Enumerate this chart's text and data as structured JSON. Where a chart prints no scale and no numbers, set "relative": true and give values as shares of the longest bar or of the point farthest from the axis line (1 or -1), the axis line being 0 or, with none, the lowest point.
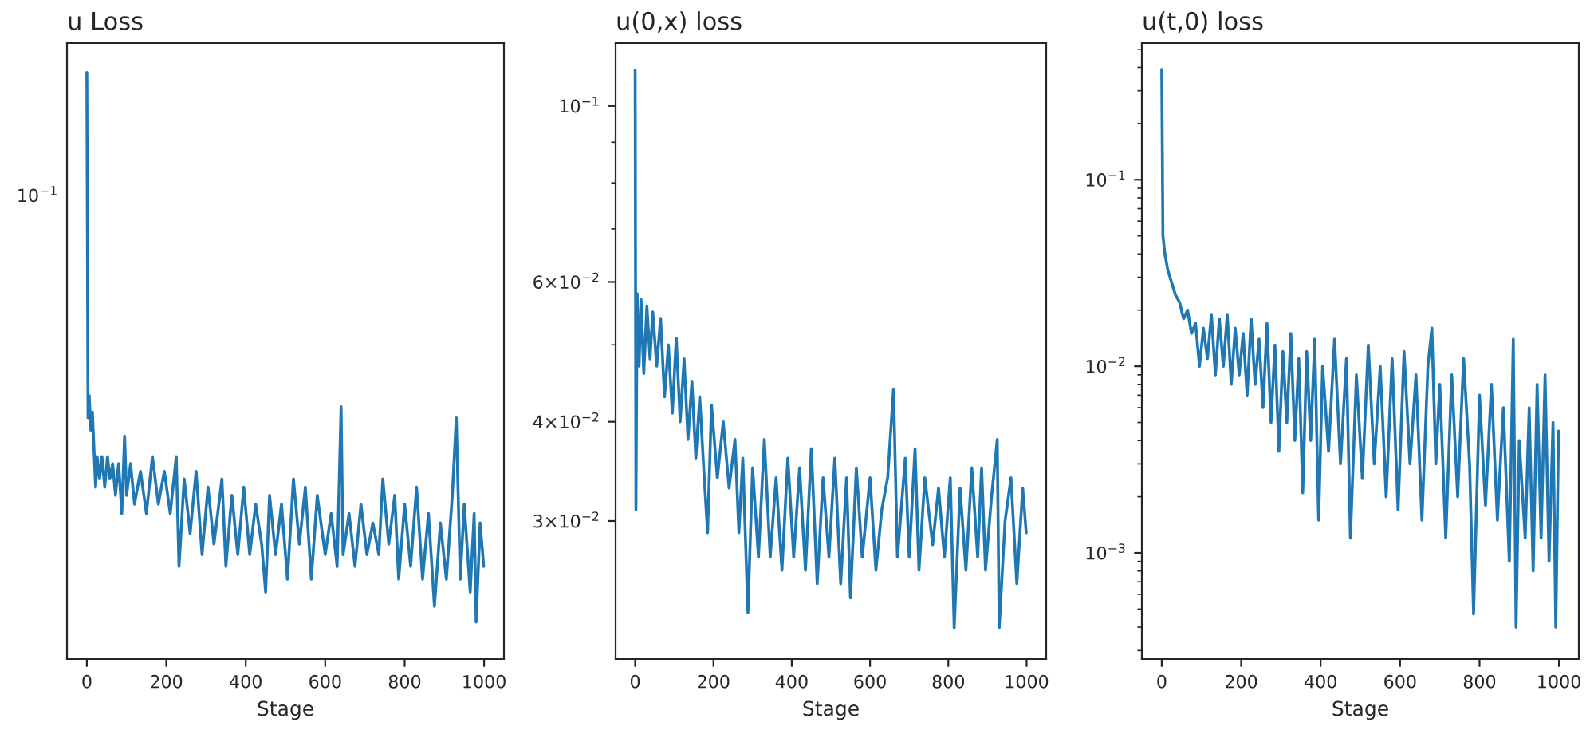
{
  "chart_data": [
    {
      "type": "line",
      "title": "u Loss",
      "xlabel": "Stage",
      "relative": true,
      "annotations": [
        "10$^{−1}$"
      ],
      "grid": false,
      "xlim": [
        -50,
        1050
      ],
      "xticks": [
        0,
        200,
        400,
        600,
        800,
        1000
      ],
      "series": [
        {
          "color": "#1f77b4",
          "x": [
            0,
            3,
            6,
            10,
            14,
            18,
            22,
            26,
            32,
            38,
            45,
            52,
            58,
            65,
            72,
            80,
            88,
            95,
            100,
            110,
            120,
            135,
            150,
            165,
            180,
            195,
            210,
            225,
            232,
            245,
            260,
            275,
            290,
            305,
            320,
            340,
            350,
            365,
            380,
            395,
            410,
            425,
            440,
            450,
            460,
            475,
            490,
            505,
            520,
            535,
            550,
            565,
            580,
            600,
            615,
            630,
            640,
            645,
            660,
            675,
            690,
            705,
            720,
            735,
            745,
            760,
            775,
            785,
            800,
            815,
            830,
            845,
            860,
            875,
            890,
            905,
            920,
            930,
            940,
            950,
            965,
            975,
            980,
            990,
            999
          ],
          "values": [
            1,
            0.411,
            0.449,
            0.39,
            0.421,
            0.357,
            0.293,
            0.345,
            0.307,
            0.345,
            0.293,
            0.345,
            0.307,
            0.333,
            0.279,
            0.333,
            0.248,
            0.38,
            0.279,
            0.333,
            0.264,
            0.32,
            0.248,
            0.345,
            0.264,
            0.32,
            0.248,
            0.345,
            0.158,
            0.307,
            0.214,
            0.32,
            0.178,
            0.293,
            0.196,
            0.307,
            0.158,
            0.279,
            0.178,
            0.293,
            0.178,
            0.264,
            0.196,
            0.114,
            0.279,
            0.178,
            0.264,
            0.136,
            0.307,
            0.196,
            0.293,
            0.136,
            0.279,
            0.178,
            0.248,
            0.158,
            0.43,
            0.178,
            0.248,
            0.158,
            0.264,
            0.178,
            0.232,
            0.178,
            0.307,
            0.196,
            0.279,
            0.136,
            0.264,
            0.158,
            0.293,
            0.136,
            0.248,
            0.09,
            0.232,
            0.136,
            0.279,
            0.411,
            0.136,
            0.264,
            0.114,
            0.248,
            0.063,
            0.232,
            0.158
          ]
        }
      ]
    },
    {
      "type": "line",
      "title": "u(0,x) loss",
      "xlabel": "Stage",
      "log": "y",
      "grid": false,
      "xlim": [
        -50,
        1050
      ],
      "xticks": [
        0,
        200,
        400,
        600,
        800,
        1000
      ],
      "ylim": [
        0.0201,
        0.12
      ],
      "yticks": [
        {
          "value": 0.1,
          "label": "10$^{−1}$"
        },
        {
          "value": 0.06,
          "label": "6×10$^{−2}$"
        },
        {
          "value": 0.04,
          "label": "4×10$^{−2}$"
        },
        {
          "value": 0.03,
          "label": "3×10$^{−2}$"
        }
      ],
      "series": [
        {
          "color": "#1f77b4",
          "x": [
            0,
            2,
            5,
            10,
            15,
            22,
            30,
            38,
            45,
            55,
            65,
            75,
            85,
            95,
            105,
            115,
            125,
            135,
            145,
            155,
            165,
            175,
            185,
            195,
            210,
            225,
            240,
            255,
            265,
            275,
            288,
            300,
            315,
            330,
            345,
            360,
            375,
            390,
            405,
            420,
            435,
            450,
            465,
            480,
            495,
            510,
            525,
            540,
            550,
            565,
            580,
            600,
            615,
            630,
            645,
            660,
            670,
            690,
            700,
            715,
            725,
            740,
            760,
            775,
            790,
            805,
            815,
            830,
            845,
            860,
            875,
            885,
            895,
            910,
            925,
            930,
            945,
            960,
            975,
            990,
            999
          ],
          "values": [
            0.111,
            0.031,
            0.058,
            0.047,
            0.057,
            0.046,
            0.056,
            0.048,
            0.055,
            0.047,
            0.054,
            0.043,
            0.05,
            0.041,
            0.051,
            0.04,
            0.048,
            0.038,
            0.045,
            0.036,
            0.043,
            0.035,
            0.029,
            0.042,
            0.034,
            0.04,
            0.033,
            0.038,
            0.029,
            0.036,
            0.023,
            0.035,
            0.027,
            0.038,
            0.027,
            0.034,
            0.026,
            0.036,
            0.027,
            0.035,
            0.026,
            0.037,
            0.025,
            0.034,
            0.027,
            0.036,
            0.025,
            0.034,
            0.024,
            0.035,
            0.027,
            0.034,
            0.026,
            0.031,
            0.034,
            0.044,
            0.027,
            0.036,
            0.027,
            0.037,
            0.026,
            0.034,
            0.028,
            0.033,
            0.027,
            0.034,
            0.022,
            0.033,
            0.026,
            0.035,
            0.027,
            0.035,
            0.026,
            0.032,
            0.038,
            0.022,
            0.03,
            0.034,
            0.025,
            0.033,
            0.029
          ]
        }
      ]
    },
    {
      "type": "line",
      "title": "u(t,0) loss",
      "xlabel": "Stage",
      "log": "y",
      "grid": false,
      "xlim": [
        -50,
        1050
      ],
      "xticks": [
        0,
        200,
        400,
        600,
        800,
        1000
      ],
      "ylim": [
        0.00027,
        0.54
      ],
      "yticks": [
        {
          "value": 0.1,
          "label": "10$^{−1}$"
        },
        {
          "value": 0.01,
          "label": "10$^{−2}$"
        },
        {
          "value": 0.001,
          "label": "10$^{−3}$"
        }
      ],
      "series": [
        {
          "color": "#1f77b4",
          "x": [
            0,
            3,
            8,
            15,
            25,
            35,
            45,
            55,
            65,
            75,
            85,
            95,
            105,
            115,
            125,
            135,
            145,
            155,
            165,
            175,
            185,
            195,
            205,
            215,
            225,
            235,
            245,
            255,
            265,
            275,
            285,
            295,
            305,
            315,
            325,
            335,
            345,
            355,
            365,
            375,
            385,
            395,
            405,
            420,
            435,
            450,
            465,
            475,
            490,
            505,
            520,
            535,
            550,
            565,
            580,
            595,
            610,
            625,
            640,
            655,
            670,
            680,
            690,
            700,
            715,
            730,
            745,
            760,
            775,
            785,
            800,
            815,
            830,
            845,
            860,
            875,
            885,
            892,
            900,
            915,
            925,
            935,
            945,
            955,
            965,
            975,
            985,
            992,
            999
          ],
          "values": [
            0.39,
            0.05,
            0.04,
            0.033,
            0.028,
            0.024,
            0.022,
            0.018,
            0.02,
            0.015,
            0.017,
            0.01,
            0.016,
            0.011,
            0.019,
            0.009,
            0.018,
            0.01,
            0.019,
            0.008,
            0.016,
            0.009,
            0.015,
            0.007,
            0.018,
            0.008,
            0.014,
            0.006,
            0.017,
            0.005,
            0.013,
            0.0035,
            0.012,
            0.005,
            0.015,
            0.004,
            0.011,
            0.0021,
            0.012,
            0.004,
            0.014,
            0.0015,
            0.01,
            0.0035,
            0.014,
            0.003,
            0.011,
            0.0012,
            0.009,
            0.0025,
            0.013,
            0.003,
            0.01,
            0.002,
            0.011,
            0.0017,
            0.012,
            0.003,
            0.009,
            0.0015,
            0.01,
            0.016,
            0.003,
            0.008,
            0.0012,
            0.009,
            0.002,
            0.011,
            0.003,
            0.00047,
            0.007,
            0.0018,
            0.008,
            0.0015,
            0.006,
            0.0009,
            0.014,
            0.0004,
            0.004,
            0.0012,
            0.006,
            0.0008,
            0.008,
            0.0012,
            0.009,
            0.0009,
            0.005,
            0.0004,
            0.0045
          ]
        }
      ]
    }
  ]
}
